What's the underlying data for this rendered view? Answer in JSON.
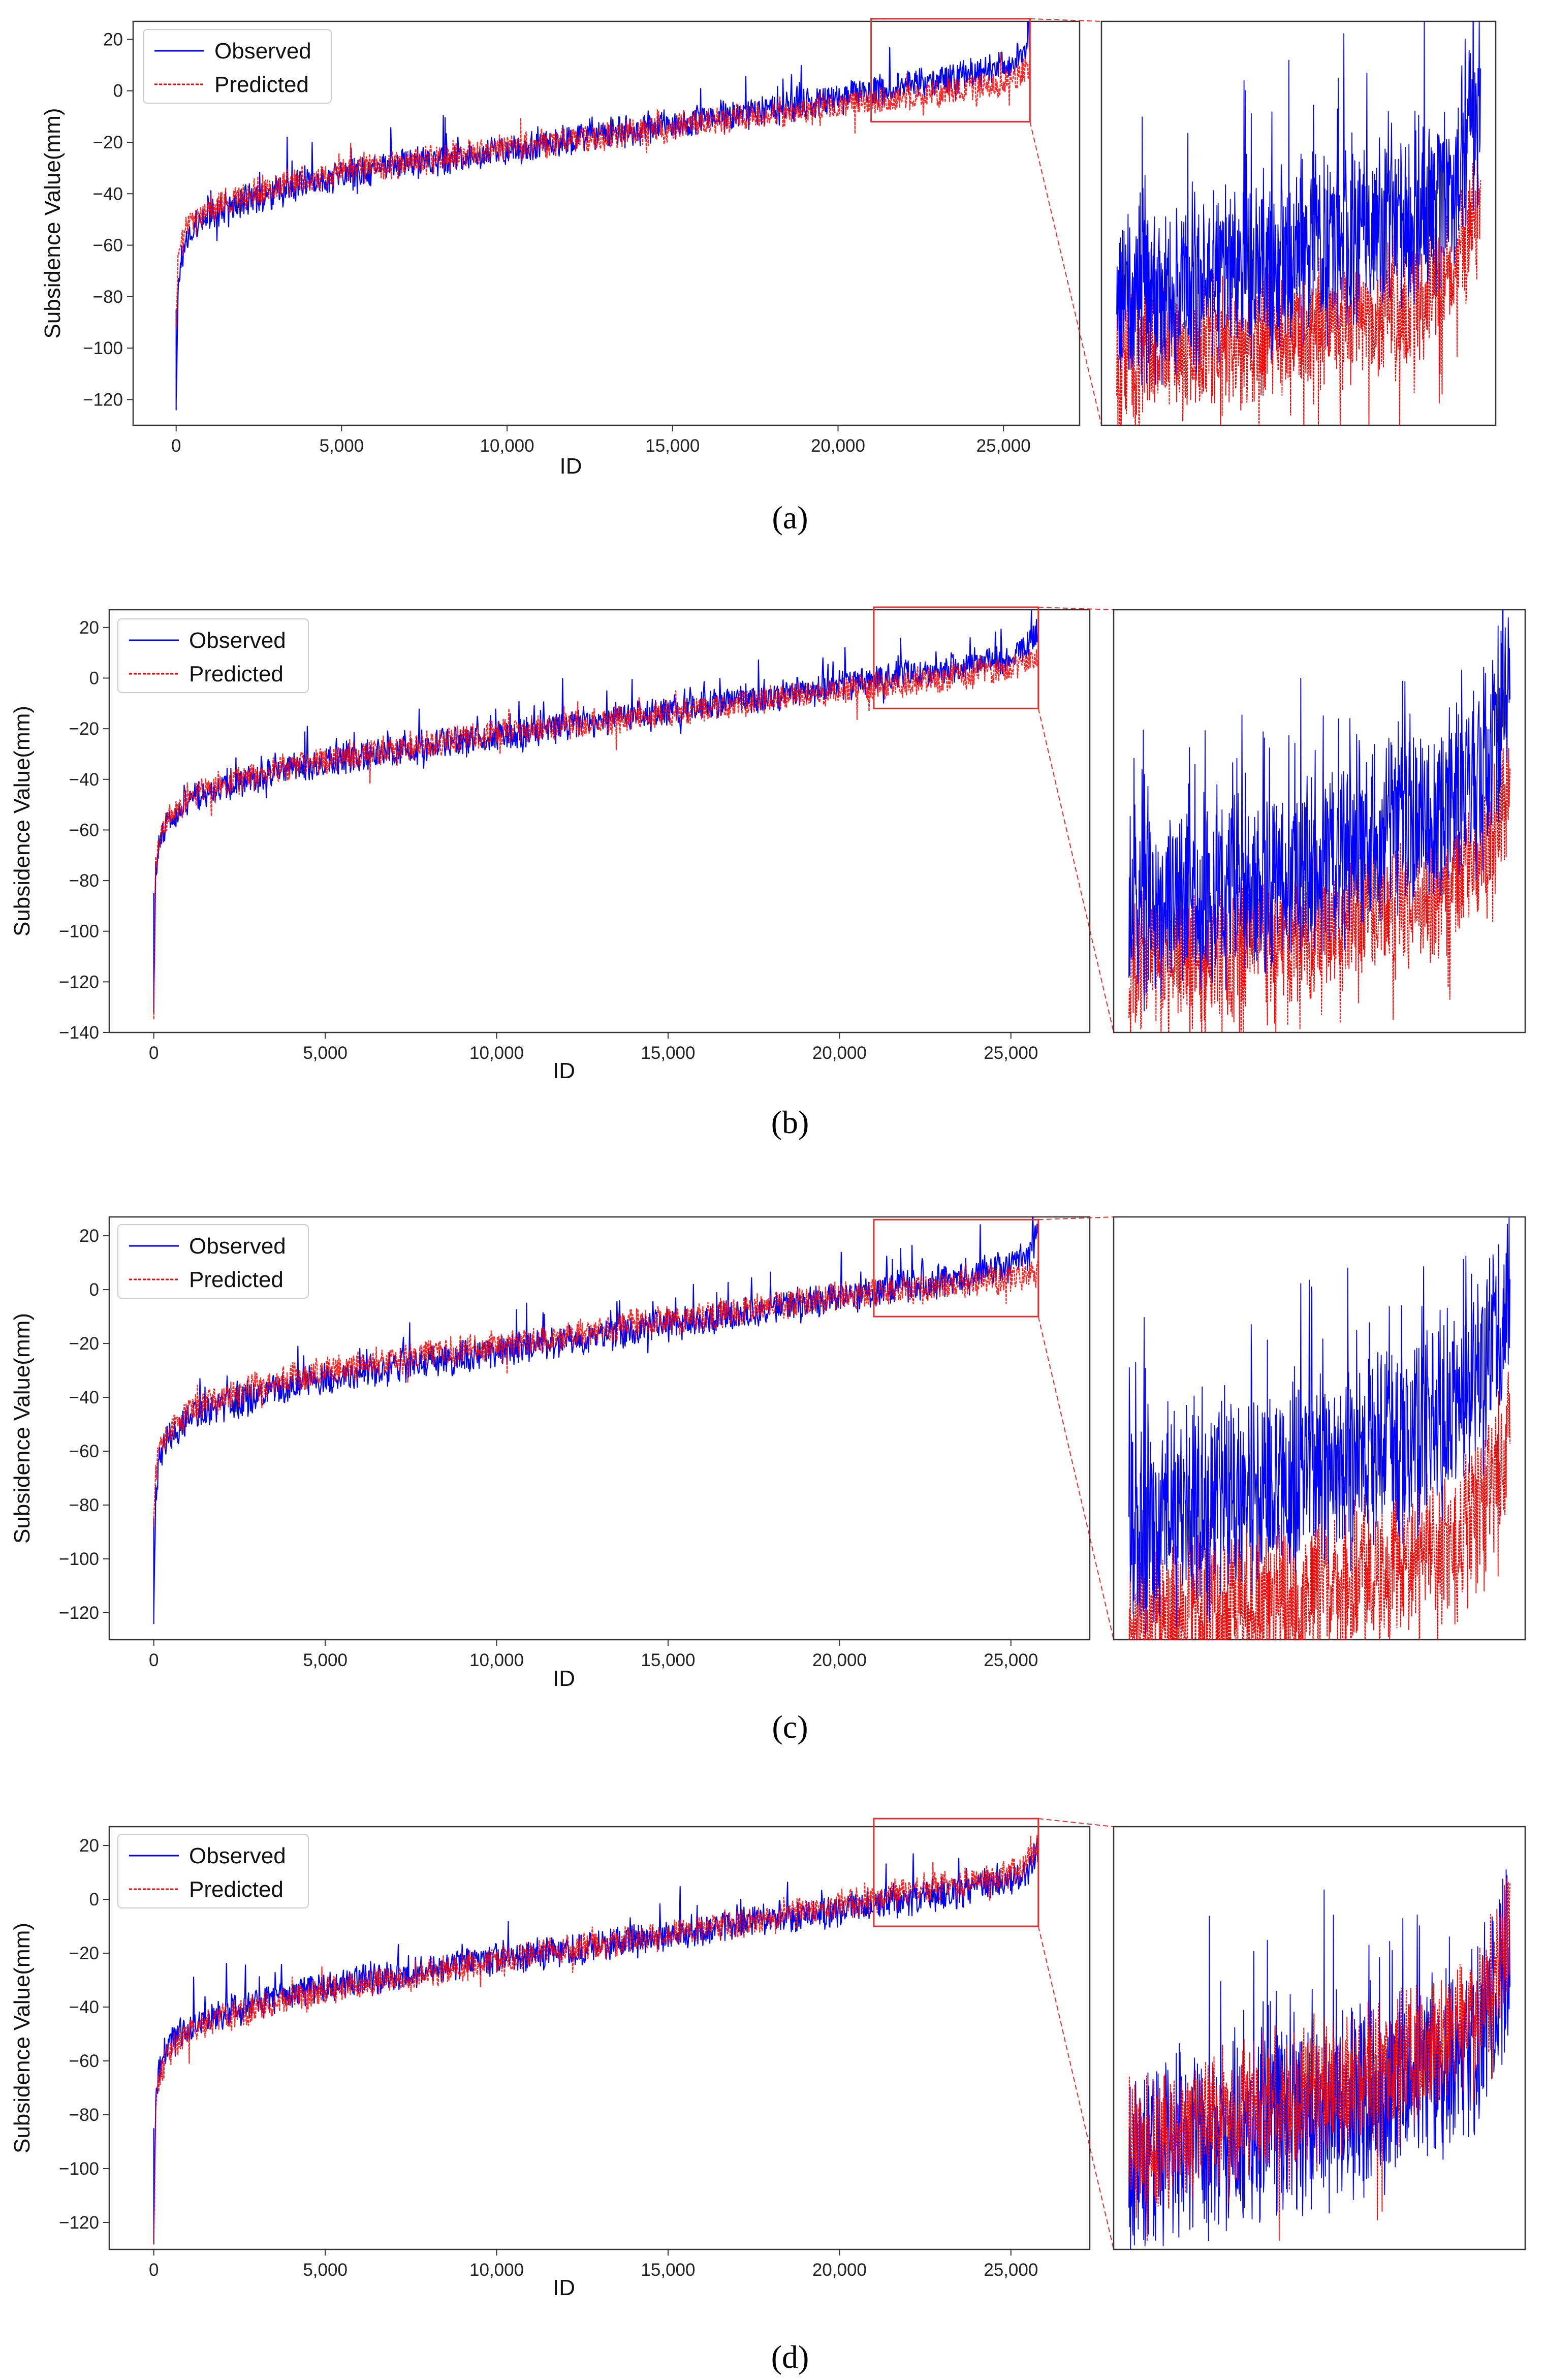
{
  "colors": {
    "observed": "#0000ff",
    "predicted": "#ff0000",
    "zoom_box": "#e03030",
    "frame": "#333333"
  },
  "chart_data": [
    {
      "panel": "a",
      "type": "line",
      "xlabel": "ID",
      "ylabel": "Subsidence Value(mm)",
      "xlim": [
        -1300,
        27300
      ],
      "ylim": [
        -130,
        27
      ],
      "xticks": [
        0,
        5000,
        10000,
        15000,
        20000,
        25000
      ],
      "xtick_labels": [
        "0",
        "5,000",
        "10,000",
        "15,000",
        "20,000",
        "25,000"
      ],
      "yticks": [
        20,
        0,
        -20,
        -40,
        -60,
        -80,
        -100,
        -120
      ],
      "ytick_labels": [
        "20",
        "0",
        "−20",
        "−40",
        "−60",
        "−80",
        "−100",
        "−120"
      ],
      "legend": [
        "Observed",
        "Predicted"
      ],
      "legend_loc": "upper-left",
      "zoom_window": {
        "x": [
          21000,
          25800
        ],
        "y": [
          -12,
          28
        ]
      },
      "predicted_offset_end": -9,
      "min_value": -124,
      "max_value": 25,
      "series": [
        {
          "name": "Observed",
          "x": [
            0,
            50,
            150,
            400,
            1000,
            2000,
            4000,
            6000,
            8000,
            10000,
            12000,
            14000,
            16000,
            18000,
            20000,
            21000,
            22000,
            23000,
            24000,
            25000,
            25500,
            25800
          ],
          "y": [
            -124,
            -75,
            -65,
            -55,
            -48,
            -43,
            -36,
            -30,
            -27,
            -23,
            -19,
            -15,
            -11,
            -7,
            -3,
            0,
            2,
            4,
            6,
            9,
            13,
            20
          ]
        },
        {
          "name": "Predicted",
          "x": [
            0,
            50,
            150,
            400,
            1000,
            2000,
            4000,
            6000,
            8000,
            10000,
            12000,
            14000,
            16000,
            18000,
            20000,
            21000,
            22000,
            23000,
            24000,
            25000,
            25500,
            25800
          ],
          "y": [
            -90,
            -68,
            -60,
            -52,
            -46,
            -41,
            -34,
            -29,
            -26,
            -22,
            -19,
            -16,
            -12,
            -9,
            -6,
            -4,
            -2,
            -1,
            1,
            3,
            6,
            10
          ]
        }
      ]
    },
    {
      "panel": "b",
      "type": "line",
      "xlabel": "ID",
      "ylabel": "Subsidence Value(mm)",
      "xlim": [
        -1300,
        27300
      ],
      "ylim": [
        -140,
        27
      ],
      "xticks": [
        0,
        5000,
        10000,
        15000,
        20000,
        25000
      ],
      "xtick_labels": [
        "0",
        "5,000",
        "10,000",
        "15,000",
        "20,000",
        "25,000"
      ],
      "yticks": [
        20,
        0,
        -20,
        -40,
        -60,
        -80,
        -100,
        -120,
        -140
      ],
      "ytick_labels": [
        "20",
        "0",
        "−20",
        "−40",
        "−60",
        "−80",
        "−100",
        "−120",
        "−140"
      ],
      "legend": [
        "Observed",
        "Predicted"
      ],
      "legend_loc": "upper-left",
      "zoom_window": {
        "x": [
          21000,
          25800
        ],
        "y": [
          -12,
          28
        ]
      },
      "predicted_offset_end": -8,
      "min_value": -132,
      "max_value": 25,
      "series": [
        {
          "name": "Observed",
          "x": [
            0,
            50,
            150,
            400,
            1000,
            2000,
            4000,
            6000,
            8000,
            10000,
            12000,
            14000,
            16000,
            18000,
            20000,
            21000,
            22000,
            23000,
            24000,
            25000,
            25500,
            25800
          ],
          "y": [
            -124,
            -78,
            -66,
            -56,
            -48,
            -43,
            -36,
            -31,
            -27,
            -23,
            -19,
            -15,
            -11,
            -7,
            -3,
            -1,
            1,
            3,
            6,
            9,
            13,
            20
          ]
        },
        {
          "name": "Predicted",
          "x": [
            0,
            50,
            150,
            400,
            1000,
            2000,
            4000,
            6000,
            8000,
            10000,
            12000,
            14000,
            16000,
            18000,
            20000,
            21000,
            22000,
            23000,
            24000,
            25000,
            25500,
            25800
          ],
          "y": [
            -132,
            -75,
            -64,
            -55,
            -47,
            -42,
            -35,
            -30,
            -26,
            -22,
            -19,
            -16,
            -12,
            -8,
            -5,
            -3,
            -2,
            0,
            2,
            4,
            7,
            10
          ]
        }
      ]
    },
    {
      "panel": "c",
      "type": "line",
      "xlabel": "ID",
      "ylabel": "Subsidence Value(mm)",
      "xlim": [
        -1300,
        27300
      ],
      "ylim": [
        -130,
        27
      ],
      "xticks": [
        0,
        5000,
        10000,
        15000,
        20000,
        25000
      ],
      "xtick_labels": [
        "0",
        "5,000",
        "10,000",
        "15,000",
        "20,000",
        "25,000"
      ],
      "yticks": [
        20,
        0,
        -20,
        -40,
        -60,
        -80,
        -100,
        -120
      ],
      "ytick_labels": [
        "20",
        "0",
        "−20",
        "−40",
        "−60",
        "−80",
        "−100",
        "−120"
      ],
      "legend": [
        "Observed",
        "Predicted"
      ],
      "legend_loc": "upper-left",
      "zoom_window": {
        "x": [
          21000,
          25800
        ],
        "y": [
          -10,
          26
        ]
      },
      "predicted_offset_end": -12,
      "min_value": -124,
      "max_value": 25,
      "series": [
        {
          "name": "Observed",
          "x": [
            0,
            50,
            150,
            400,
            1000,
            2000,
            4000,
            6000,
            8000,
            10000,
            12000,
            14000,
            16000,
            18000,
            20000,
            21000,
            22000,
            23000,
            24000,
            25000,
            25500,
            25800
          ],
          "y": [
            -124,
            -76,
            -65,
            -55,
            -48,
            -43,
            -36,
            -31,
            -27,
            -23,
            -19,
            -15,
            -11,
            -7,
            -3,
            -1,
            1,
            3,
            6,
            9,
            13,
            20
          ]
        },
        {
          "name": "Predicted",
          "x": [
            0,
            50,
            150,
            400,
            1000,
            2000,
            4000,
            6000,
            8000,
            10000,
            12000,
            14000,
            16000,
            18000,
            20000,
            21000,
            22000,
            23000,
            24000,
            25000,
            25500,
            25800
          ],
          "y": [
            -88,
            -70,
            -60,
            -52,
            -45,
            -40,
            -33,
            -28,
            -24,
            -21,
            -17,
            -13,
            -10,
            -6,
            -3,
            -1,
            0,
            1,
            3,
            4,
            5,
            7
          ]
        }
      ]
    },
    {
      "panel": "d",
      "type": "line",
      "xlabel": "ID",
      "ylabel": "Subsidence Value(mm)",
      "xlim": [
        -1300,
        27300
      ],
      "ylim": [
        -130,
        27
      ],
      "xticks": [
        0,
        5000,
        10000,
        15000,
        20000,
        25000
      ],
      "xtick_labels": [
        "0",
        "5,000",
        "10,000",
        "15,000",
        "20,000",
        "25,000"
      ],
      "yticks": [
        20,
        0,
        -20,
        -40,
        -60,
        -80,
        -100,
        -120
      ],
      "ytick_labels": [
        "20",
        "0",
        "−20",
        "−40",
        "−60",
        "−80",
        "−100",
        "−120"
      ],
      "legend": [
        "Observed",
        "Predicted"
      ],
      "legend_loc": "upper-left",
      "zoom_window": {
        "x": [
          21000,
          25800
        ],
        "y": [
          -10,
          30
        ]
      },
      "predicted_offset_end": 3,
      "min_value": -128,
      "max_value": 29,
      "series": [
        {
          "name": "Observed",
          "x": [
            0,
            50,
            150,
            400,
            1000,
            2000,
            4000,
            6000,
            8000,
            10000,
            12000,
            14000,
            16000,
            18000,
            20000,
            21000,
            22000,
            23000,
            24000,
            25000,
            25500,
            25800
          ],
          "y": [
            -124,
            -76,
            -65,
            -55,
            -47,
            -42,
            -35,
            -30,
            -26,
            -22,
            -19,
            -15,
            -11,
            -7,
            -4,
            -2,
            0,
            2,
            4,
            7,
            11,
            18
          ]
        },
        {
          "name": "Predicted",
          "x": [
            0,
            50,
            150,
            400,
            1000,
            2000,
            4000,
            6000,
            8000,
            10000,
            12000,
            14000,
            16000,
            18000,
            20000,
            21000,
            22000,
            23000,
            24000,
            25000,
            25500,
            25800
          ],
          "y": [
            -128,
            -78,
            -67,
            -57,
            -49,
            -44,
            -37,
            -32,
            -27,
            -23,
            -19,
            -15,
            -11,
            -7,
            -2,
            0,
            3,
            5,
            7,
            10,
            14,
            22
          ]
        }
      ]
    }
  ],
  "panel_labels": [
    "(a)",
    "(b)",
    "(c)",
    "(d)"
  ]
}
